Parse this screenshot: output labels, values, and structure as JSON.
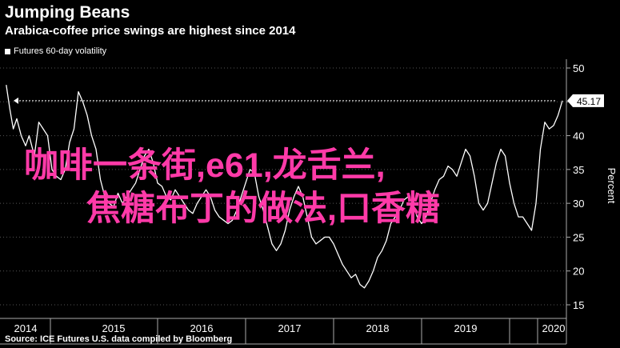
{
  "header": {
    "title": "Jumping Beans",
    "subtitle": "Arabica-coffee price swings are highest since 2014"
  },
  "legend": {
    "label": "Futures 60-day volatility"
  },
  "footer": {
    "source": "Source: ICE Futures U.S. data compiled by Bloomberg"
  },
  "overlay": {
    "line1": "咖啡一条街,e61,龙舌兰,",
    "line2": "焦糖布丁的做法,口香糖"
  },
  "colors": {
    "background": "#000000",
    "line": "#ffffff",
    "grid": "#555555",
    "overlay": "#ff3aa8"
  },
  "chart_data": {
    "type": "line",
    "title": "",
    "xlabel": "",
    "ylabel": "Percent",
    "ylim": [
      15,
      50
    ],
    "yticks": [
      15,
      20,
      25,
      30,
      35,
      40,
      45,
      50
    ],
    "xlim": [
      2014.0,
      2020.3
    ],
    "xticks": [
      {
        "label": "2014",
        "value": 2014.0
      },
      {
        "label": "2015",
        "value": 2015.0
      },
      {
        "label": "2016",
        "value": 2016.0
      },
      {
        "label": "2017",
        "value": 2017.0
      },
      {
        "label": "2018",
        "value": 2018.0
      },
      {
        "label": "2019",
        "value": 2019.0
      },
      {
        "label": "2020",
        "value": 2020.0
      }
    ],
    "reference_line": {
      "value": 45.17,
      "label": "45.17",
      "style": "dotted"
    },
    "series": [
      {
        "name": "Futures 60-day volatility",
        "x": [
          2013.78,
          2013.82,
          2013.86,
          2013.9,
          2013.95,
          2014.0,
          2014.04,
          2014.1,
          2014.15,
          2014.2,
          2014.25,
          2014.3,
          2014.35,
          2014.4,
          2014.45,
          2014.5,
          2014.55,
          2014.6,
          2014.65,
          2014.7,
          2014.75,
          2014.8,
          2014.85,
          2014.9,
          2014.95,
          2015.0,
          2015.05,
          2015.1,
          2015.15,
          2015.2,
          2015.25,
          2015.3,
          2015.35,
          2015.4,
          2015.45,
          2015.5,
          2015.55,
          2015.6,
          2015.65,
          2015.7,
          2015.75,
          2015.8,
          2015.85,
          2015.9,
          2015.95,
          2016.0,
          2016.05,
          2016.1,
          2016.15,
          2016.2,
          2016.25,
          2016.3,
          2016.35,
          2016.4,
          2016.45,
          2016.5,
          2016.55,
          2016.6,
          2016.65,
          2016.7,
          2016.75,
          2016.8,
          2016.85,
          2016.9,
          2016.95,
          2017.0,
          2017.05,
          2017.1,
          2017.15,
          2017.2,
          2017.25,
          2017.3,
          2017.35,
          2017.4,
          2017.45,
          2017.5,
          2017.55,
          2017.6,
          2017.65,
          2017.7,
          2017.75,
          2017.8,
          2017.85,
          2017.9,
          2017.95,
          2018.0,
          2018.05,
          2018.1,
          2018.15,
          2018.2,
          2018.25,
          2018.3,
          2018.35,
          2018.4,
          2018.45,
          2018.5,
          2018.55,
          2018.6,
          2018.65,
          2018.7,
          2018.75,
          2018.8,
          2018.85,
          2018.9,
          2018.95,
          2019.0,
          2019.05,
          2019.1,
          2019.15,
          2019.2,
          2019.25,
          2019.3,
          2019.35,
          2019.4,
          2019.45,
          2019.5,
          2019.55,
          2019.6,
          2019.65,
          2019.7,
          2019.75,
          2019.8,
          2019.85,
          2019.9,
          2019.95,
          2020.0,
          2020.05,
          2020.1
        ],
        "values": [
          47.5,
          44,
          41,
          42.5,
          40,
          38.5,
          40,
          37,
          42,
          41,
          40,
          35,
          34,
          33.5,
          35,
          39,
          41,
          46.5,
          45,
          43,
          40,
          38,
          33.5,
          31,
          30,
          29.5,
          31.5,
          30,
          31,
          32,
          33,
          35,
          37,
          38,
          36,
          33,
          32.5,
          31,
          30.5,
          32,
          31,
          30,
          29,
          28.5,
          30,
          31,
          32,
          31,
          29,
          28,
          27.5,
          27,
          27.5,
          29,
          31,
          33,
          35,
          34.5,
          31,
          29,
          26.5,
          24,
          23,
          24,
          26,
          29,
          31,
          32.5,
          31,
          28,
          25,
          24,
          24.5,
          25,
          25,
          24,
          22.5,
          21,
          20,
          19,
          19.5,
          18,
          17.5,
          18.5,
          20,
          22,
          23,
          24.5,
          27,
          28,
          29,
          30.5,
          31,
          30,
          28,
          27,
          28,
          30,
          32,
          33.5,
          34,
          35.5,
          35,
          34,
          36,
          38,
          37,
          34,
          30,
          29,
          30,
          33,
          36,
          38,
          37,
          33,
          30,
          28,
          28,
          27,
          26,
          30,
          38,
          42,
          41,
          41.5,
          43,
          45.17
        ]
      }
    ]
  }
}
